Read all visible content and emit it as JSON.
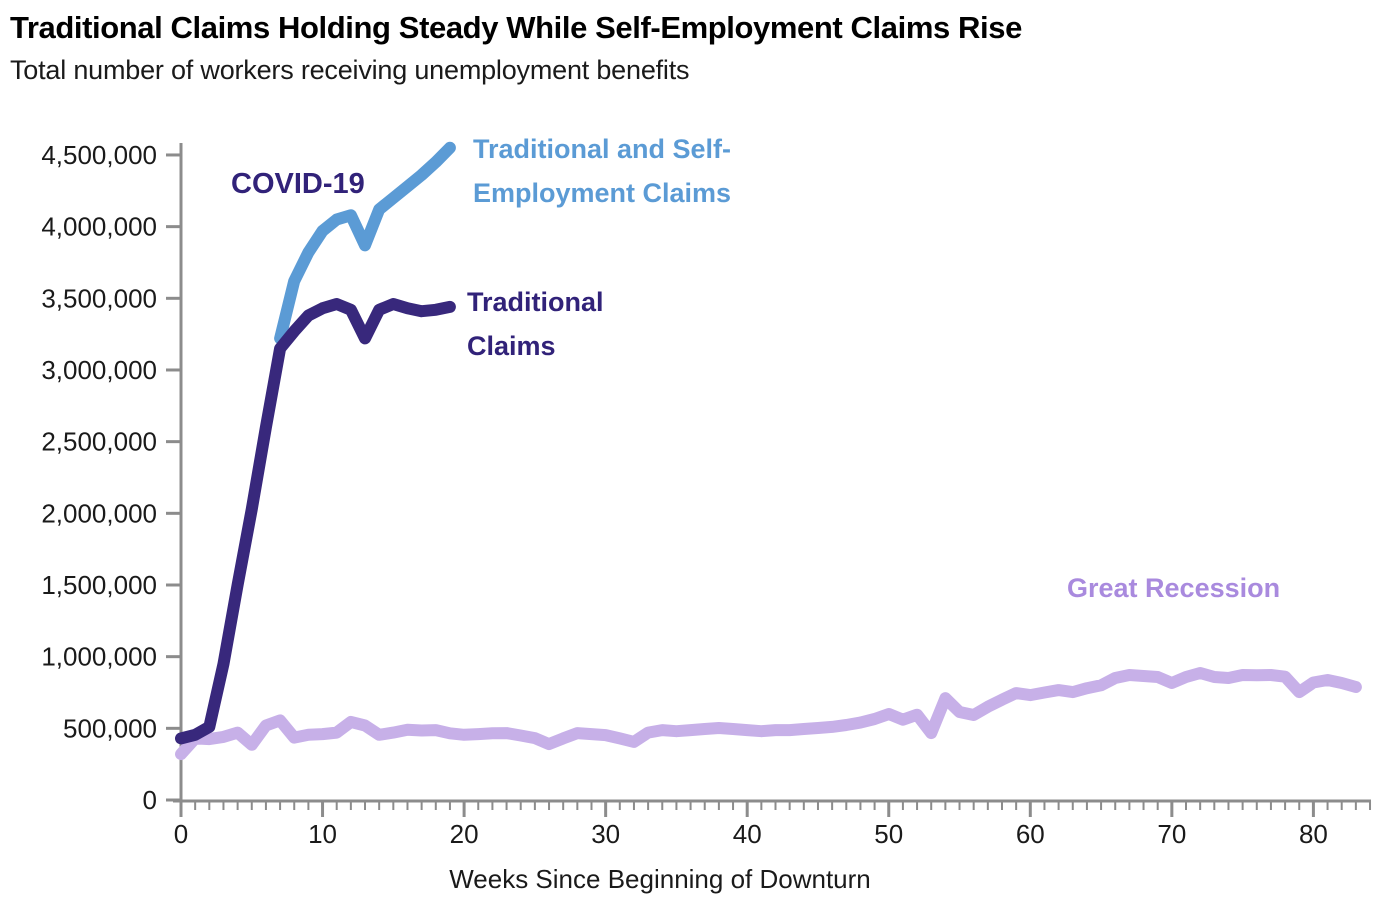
{
  "header": {
    "title": "Traditional Claims Holding Steady While Self-Employment Claims Rise",
    "subtitle": "Total number of workers receiving unemployment benefits"
  },
  "annotations": {
    "covid": "COVID-19",
    "combined_line1": "Traditional and Self-",
    "combined_line2": "Employment Claims",
    "traditional_line1": "Traditional",
    "traditional_line2": "Claims",
    "great_recession": "Great Recession"
  },
  "colors": {
    "traditional_line": "#38287c",
    "combined_line": "#5b9bd5",
    "great_recession_line": "#c7b0e8",
    "covid_label": "#312279",
    "traditional_label": "#312279",
    "combined_label": "#5b9bd5",
    "great_recession_label": "#a98ade",
    "axis": "#8c8c8c",
    "tick_text": "#1a1a1a"
  },
  "chart_data": {
    "type": "line",
    "title": "Traditional Claims Holding Steady While Self-Employment Claims Rise",
    "subtitle": "Total number of workers receiving unemployment benefits",
    "xlabel": "Weeks Since Beginning of Downturn",
    "ylabel": "",
    "xlim": [
      0,
      84
    ],
    "ylim": [
      0,
      4500000
    ],
    "grid": false,
    "legend_position": "direct-labels-on-chart",
    "x_axis": {
      "tick_values": [
        0,
        10,
        20,
        30,
        40,
        50,
        60,
        70,
        80
      ],
      "tick_labels": [
        "0",
        "10",
        "20",
        "30",
        "40",
        "50",
        "60",
        "70",
        "80"
      ],
      "minor_tick_every_weeks": 1
    },
    "y_axis": {
      "tick_values": [
        0,
        500000,
        1000000,
        1500000,
        2000000,
        2500000,
        3000000,
        3500000,
        4000000,
        4500000
      ],
      "tick_labels": [
        "0",
        "500,000",
        "1,000,000",
        "1,500,000",
        "2,000,000",
        "2,500,000",
        "3,000,000",
        "3,500,000",
        "4,000,000",
        "4,500,000"
      ]
    },
    "series": [
      {
        "name": "Great Recession",
        "color_key": "great_recession_line",
        "start_week": 0,
        "values": [
          320000,
          430000,
          425000,
          440000,
          470000,
          385000,
          520000,
          555000,
          435000,
          455000,
          460000,
          470000,
          545000,
          520000,
          455000,
          470000,
          490000,
          485000,
          488000,
          465000,
          455000,
          460000,
          465000,
          467000,
          450000,
          432000,
          390000,
          430000,
          467000,
          460000,
          453000,
          430000,
          405000,
          470000,
          488000,
          480000,
          488000,
          495000,
          502000,
          495000,
          488000,
          480000,
          488000,
          488000,
          495000,
          502000,
          510000,
          523000,
          540000,
          565000,
          600000,
          560000,
          595000,
          467000,
          710000,
          614000,
          593000,
          650000,
          700000,
          746000,
          732000,
          750000,
          767000,
          753000,
          780000,
          800000,
          851000,
          872000,
          865000,
          858000,
          816000,
          858000,
          886000,
          858000,
          851000,
          872000,
          870000,
          872000,
          860000,
          753000,
          820000,
          837000,
          816000,
          788000
        ]
      },
      {
        "name": "Traditional and Self-Employment Claims",
        "color_key": "combined_line",
        "start_week": 7,
        "values": [
          3220000,
          3620000,
          3820000,
          3970000,
          4050000,
          4080000,
          3870000,
          4120000,
          4200000,
          4280000,
          4360000,
          4450000,
          4550000
        ]
      },
      {
        "name": "Traditional Claims",
        "color_key": "traditional_line",
        "start_week": 0,
        "values": [
          430000,
          455000,
          510000,
          950000,
          1500000,
          2030000,
          2600000,
          3150000,
          3270000,
          3380000,
          3430000,
          3460000,
          3420000,
          3220000,
          3420000,
          3460000,
          3430000,
          3410000,
          3420000,
          3440000
        ]
      }
    ]
  }
}
